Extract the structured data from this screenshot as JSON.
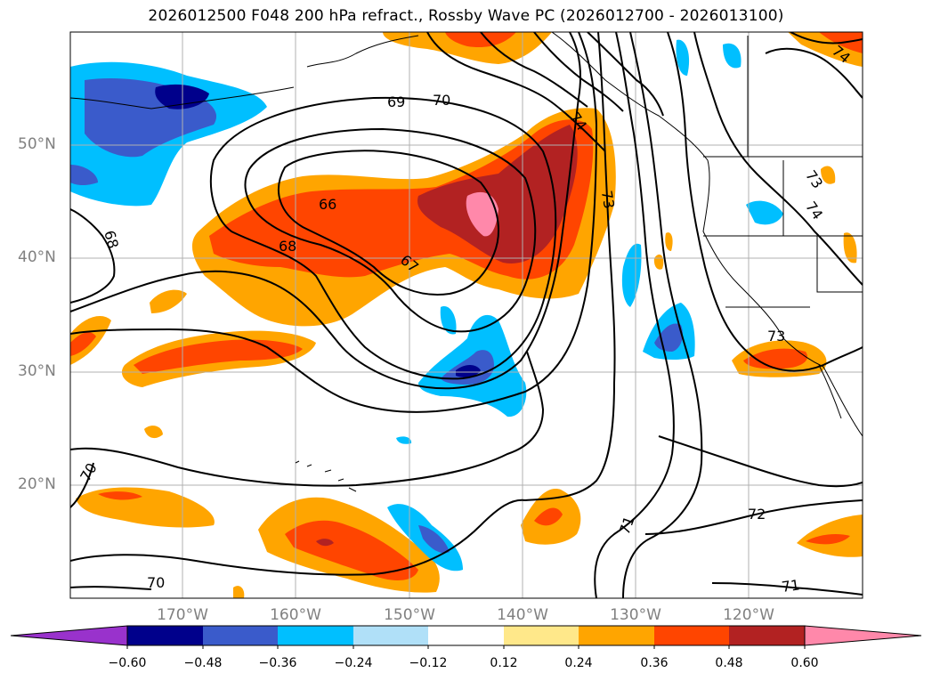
{
  "title": "2026012500 F048 200 hPa refract., Rossby Wave PC (2026012700 - 2026013100)",
  "map": {
    "region": "North-East Pacific",
    "grid": true,
    "lat_labels": [
      "50°N",
      "40°N",
      "30°N",
      "20°N"
    ],
    "lon_labels": [
      "170°W",
      "160°W",
      "150°W",
      "140°W",
      "130°W",
      "120°W"
    ]
  },
  "contour_labels": [
    "69",
    "70",
    "74",
    "66",
    "73",
    "68",
    "67",
    "68",
    "74",
    "73",
    "73",
    "70",
    "71",
    "72",
    "70",
    "71",
    "74"
  ],
  "colorbar": {
    "ticks": [
      "−0.60",
      "−0.48",
      "−0.36",
      "−0.24",
      "−0.12",
      "0.12",
      "0.24",
      "0.36",
      "0.48",
      "0.60"
    ],
    "colors": [
      "#9932cc",
      "#00008b",
      "#3a5bcb",
      "#00bfff",
      "#b0e0f8",
      "#ffffff",
      "#ffe88a",
      "#ffa500",
      "#ff4500",
      "#b22222",
      "#ff88aa"
    ]
  }
}
